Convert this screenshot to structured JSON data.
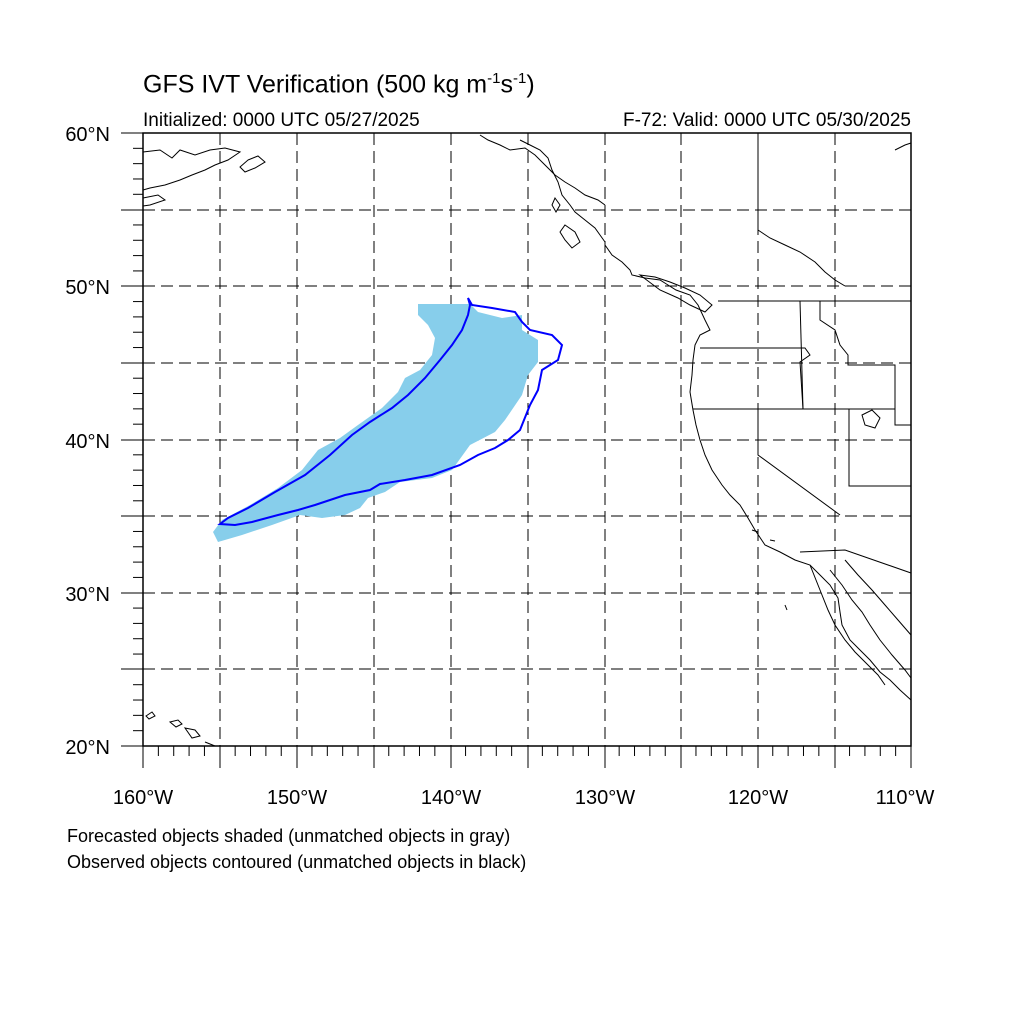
{
  "title": {
    "main_prefix": "GFS IVT Verification (500 kg m",
    "exp1": "-1",
    "mid": "s",
    "exp2": "-1",
    "suffix": ")"
  },
  "initialized": "Initialized: 0000 UTC 05/27/2025",
  "valid": "F-72: Valid: 0000 UTC 05/30/2025",
  "notes": {
    "forecast": "Forecasted objects shaded (unmatched objects in gray)",
    "observed": "Observed objects contoured (unmatched objects in black)"
  },
  "map": {
    "lon_range": [
      -160,
      -110
    ],
    "lat_range": [
      20,
      60
    ],
    "lat_labels": [
      "60°N",
      "50°N",
      "40°N",
      "30°N",
      "20°N"
    ],
    "lon_labels": [
      "160°W",
      "150°W",
      "140°W",
      "130°W",
      "120°W",
      "110°W"
    ],
    "colors": {
      "forecast_fill": "#87ceeb",
      "observed_contour": "#0000ff",
      "coastline": "#000000",
      "grid": "#000000"
    }
  }
}
